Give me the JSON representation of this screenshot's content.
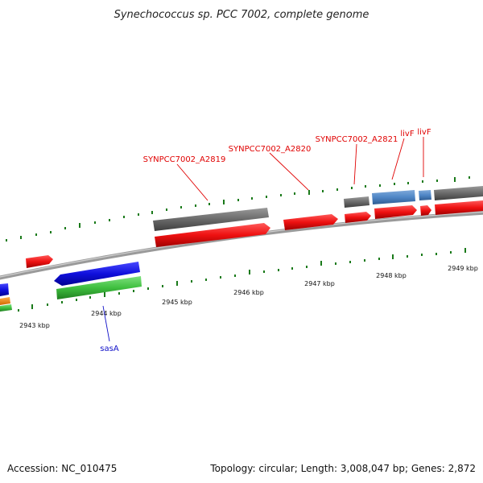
{
  "title": "Synechococcus sp. PCC 7002, complete genome",
  "footer": {
    "accession": "Accession: NC_010475",
    "summary": "Topology: circular; Length: 3,008,047 bp; Genes: 2,872"
  },
  "ticks": [
    "2943 kbp",
    "2944 kbp",
    "2945 kbp",
    "2946 kbp",
    "2947 kbp",
    "2948 kbp",
    "2949 kbp"
  ],
  "gene_labels": {
    "a2819": "SYNPCC7002_A2819",
    "a2820": "SYNPCC7002_A2820",
    "a2821": "SYNPCC7002_A2821",
    "livf1": "livF",
    "livf2": "livF",
    "sasA": "sasA"
  },
  "colors": {
    "cds_forward": "#ee1111",
    "cds_reverse": "#1010dd",
    "gene": "#707070",
    "rna": "#4f86c6",
    "green_track": "#3fbf3f",
    "orange_track": "#ff8c00",
    "backbone": "#808080",
    "tick": "#1a7a1a"
  }
}
